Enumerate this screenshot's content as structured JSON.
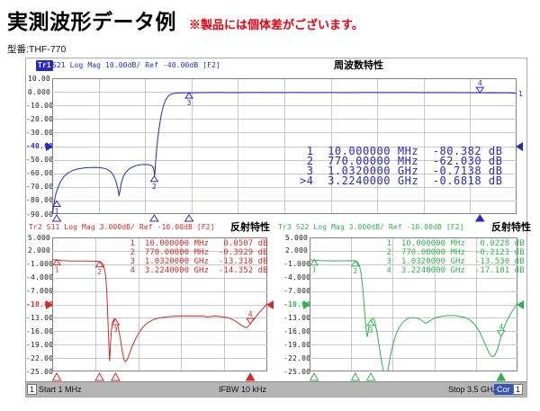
{
  "header": {
    "title": "実測波形データ例",
    "note": "※製品には個体差がございます。",
    "model": "型番:THF-770"
  },
  "status_bar": {
    "channel": "1",
    "start": "Start 1 MHz",
    "ifbw": "IFBW 10 kHz",
    "stop": "Stop 3.5 GHz",
    "cor": "Cor",
    "trailing": "1"
  },
  "colors": {
    "trace1": "#2828c8",
    "trace2": "#d42a2a",
    "trace3": "#2db34d",
    "grid": "#c9c9c9",
    "plot_border": "#808080",
    "note_red": "#e8000d",
    "cor_bg": "#3355bb",
    "statusbar_bg": "#b5b5b5"
  },
  "chart_data": [
    {
      "type": "line",
      "id": "tr1",
      "trace_label": "Tr1",
      "trace_label_highlighted": true,
      "header_text": "S21 Log Mag 10.00dB/ Ref -40.00dB [F2]",
      "panel_title": "周波数特性",
      "color": "#2828c8",
      "x_range_hz": [
        1000000,
        3500000000
      ],
      "x_encoding": "fraction_of_linear_sweep_1MHz_to_3.5GHz",
      "y_unit": "dB",
      "ylim": [
        -90,
        10
      ],
      "ytick_labels": [
        "10.00",
        "0.000",
        "-10.00",
        "-20.00",
        "-30.00",
        "-40.00",
        "-50.00",
        "-60.00",
        "-70.00",
        "-80.00",
        "-90.00"
      ],
      "ref_tick_index": 5,
      "trace_end_label": "1",
      "readout": [
        {
          "n": " 1",
          "freq": "10.000000 MHz",
          "val": "-80.382",
          "unit": "dB"
        },
        {
          "n": " 2",
          "freq": "770.00000 MHz",
          "val": "-62.030",
          "unit": "dB"
        },
        {
          "n": " 3",
          "freq": "1.0320000 GHz",
          "val": "-0.7138",
          "unit": "dB"
        },
        {
          "n": ">4",
          "freq": "3.2240000 GHz",
          "val": "-0.6818",
          "unit": "dB"
        }
      ],
      "markers": [
        {
          "label": "1",
          "x": 0.0026,
          "db": -80.382,
          "active": false
        },
        {
          "label": "2",
          "x": 0.2198,
          "db": -62.03,
          "active": false
        },
        {
          "label": "3",
          "x": 0.2947,
          "db": -0.7138,
          "active": false
        },
        {
          "label": "4",
          "x": 0.9211,
          "db": -0.6818,
          "active": true
        }
      ],
      "points": [
        [
          0.001,
          -92
        ],
        [
          0.002,
          -87
        ],
        [
          0.004,
          -82
        ],
        [
          0.006,
          -78
        ],
        [
          0.009,
          -74
        ],
        [
          0.013,
          -70
        ],
        [
          0.018,
          -66
        ],
        [
          0.025,
          -62.5
        ],
        [
          0.033,
          -60
        ],
        [
          0.042,
          -58.2
        ],
        [
          0.052,
          -57
        ],
        [
          0.065,
          -56.2
        ],
        [
          0.08,
          -55.7
        ],
        [
          0.095,
          -55.6
        ],
        [
          0.108,
          -56
        ],
        [
          0.118,
          -57
        ],
        [
          0.126,
          -58.8
        ],
        [
          0.132,
          -61.5
        ],
        [
          0.137,
          -65.5
        ],
        [
          0.141,
          -71
        ],
        [
          0.144,
          -76.5
        ],
        [
          0.146,
          -73
        ],
        [
          0.149,
          -67
        ],
        [
          0.153,
          -62.5
        ],
        [
          0.158,
          -59.5
        ],
        [
          0.165,
          -57
        ],
        [
          0.173,
          -55.3
        ],
        [
          0.182,
          -54.2
        ],
        [
          0.192,
          -53.6
        ],
        [
          0.202,
          -53.5
        ],
        [
          0.21,
          -53.8
        ],
        [
          0.215,
          -54.6
        ],
        [
          0.218,
          -56.2
        ],
        [
          0.2195,
          -58.5
        ],
        [
          0.2205,
          -62
        ],
        [
          0.2215,
          -58
        ],
        [
          0.223,
          -50
        ],
        [
          0.225,
          -42
        ],
        [
          0.2275,
          -34
        ],
        [
          0.23,
          -27
        ],
        [
          0.2335,
          -19.5
        ],
        [
          0.237,
          -13.5
        ],
        [
          0.241,
          -8.8
        ],
        [
          0.2455,
          -5.2
        ],
        [
          0.25,
          -3.1
        ],
        [
          0.255,
          -1.9
        ],
        [
          0.261,
          -1.2
        ],
        [
          0.268,
          -0.9
        ],
        [
          0.278,
          -0.75
        ],
        [
          0.2947,
          -0.71
        ],
        [
          0.32,
          -0.62
        ],
        [
          0.36,
          -0.55
        ],
        [
          0.4,
          -0.58
        ],
        [
          0.44,
          -0.53
        ],
        [
          0.48,
          -0.58
        ],
        [
          0.52,
          -0.55
        ],
        [
          0.56,
          -0.6
        ],
        [
          0.6,
          -0.55
        ],
        [
          0.64,
          -0.58
        ],
        [
          0.68,
          -0.54
        ],
        [
          0.72,
          -0.6
        ],
        [
          0.76,
          -0.56
        ],
        [
          0.8,
          -0.6
        ],
        [
          0.84,
          -0.58
        ],
        [
          0.87,
          -0.62
        ],
        [
          0.9,
          -0.66
        ],
        [
          0.9211,
          -0.68
        ],
        [
          0.935,
          -0.78
        ],
        [
          0.95,
          -0.68
        ],
        [
          0.965,
          -0.75
        ],
        [
          0.98,
          -0.72
        ],
        [
          0.99,
          -0.85
        ],
        [
          1,
          -1.15
        ]
      ]
    },
    {
      "type": "line",
      "id": "tr2",
      "trace_label": "Tr2",
      "trace_label_highlighted": false,
      "header_text": "S11 Log Mag 3.000dB/ Ref -10.00dB [F2]",
      "panel_title": "反射特性",
      "color": "#d42a2a",
      "x_range_hz": [
        1000000,
        3500000000
      ],
      "x_encoding": "fraction_of_linear_sweep_1MHz_to_3.5GHz",
      "y_unit": "dB",
      "ylim": [
        -25,
        5
      ],
      "ytick_labels": [
        "5.000",
        "2.000",
        "-1.000",
        "-4.000",
        "-7.000",
        "-10.00",
        "-13.00",
        "-16.00",
        "-19.00",
        "-22.00",
        "-25.00"
      ],
      "ref_tick_index": 5,
      "trace_end_label": "",
      "readout": [
        {
          "n": " 1",
          "freq": "10.000000 MHz",
          "val": "0.0507",
          "unit": "dB"
        },
        {
          "n": " 2",
          "freq": "770.00000 MHz",
          "val": "-0.3929",
          "unit": "dB"
        },
        {
          "n": " 3",
          "freq": "1.0320000 GHz",
          "val": "-13.318",
          "unit": "dB"
        },
        {
          "n": " 4",
          "freq": "3.2240000 GHz",
          "val": "-14.352",
          "unit": "dB"
        }
      ],
      "markers": [
        {
          "label": "1",
          "x": 0.0026,
          "db": 0.0507,
          "active": false
        },
        {
          "label": "2",
          "x": 0.2198,
          "db": -0.3929,
          "active": false
        },
        {
          "label": "3",
          "x": 0.2947,
          "db": -13.318,
          "active": false
        },
        {
          "label": "4",
          "x": 0.9211,
          "db": -14.352,
          "active": true
        }
      ],
      "points": [
        [
          0.002,
          0.05
        ],
        [
          0.02,
          -0.1
        ],
        [
          0.05,
          -0.22
        ],
        [
          0.09,
          -0.28
        ],
        [
          0.13,
          -0.3
        ],
        [
          0.17,
          -0.3
        ],
        [
          0.2,
          -0.34
        ],
        [
          0.2198,
          -0.39
        ],
        [
          0.228,
          -0.55
        ],
        [
          0.235,
          -0.9
        ],
        [
          0.242,
          -1.8
        ],
        [
          0.248,
          -3.5
        ],
        [
          0.253,
          -6.5
        ],
        [
          0.257,
          -10.5
        ],
        [
          0.26,
          -14.5
        ],
        [
          0.263,
          -18.5
        ],
        [
          0.2655,
          -21.5
        ],
        [
          0.267,
          -22.6
        ],
        [
          0.269,
          -21
        ],
        [
          0.272,
          -18
        ],
        [
          0.276,
          -15.5
        ],
        [
          0.281,
          -14
        ],
        [
          0.287,
          -13.2
        ],
        [
          0.2947,
          -13.3
        ],
        [
          0.299,
          -13.6
        ],
        [
          0.304,
          -14.4
        ],
        [
          0.311,
          -16
        ],
        [
          0.318,
          -18
        ],
        [
          0.326,
          -20.5
        ],
        [
          0.333,
          -22.2
        ],
        [
          0.34,
          -22.8
        ],
        [
          0.348,
          -22.4
        ],
        [
          0.358,
          -21.2
        ],
        [
          0.37,
          -19.6
        ],
        [
          0.385,
          -18
        ],
        [
          0.4,
          -16.6
        ],
        [
          0.42,
          -15.2
        ],
        [
          0.44,
          -14.2
        ],
        [
          0.47,
          -13.4
        ],
        [
          0.5,
          -13
        ],
        [
          0.53,
          -12.8
        ],
        [
          0.56,
          -12.65
        ],
        [
          0.59,
          -12.6
        ],
        [
          0.62,
          -12.55
        ],
        [
          0.65,
          -12.6
        ],
        [
          0.68,
          -12.55
        ],
        [
          0.7,
          -12.6
        ],
        [
          0.72,
          -12.8
        ],
        [
          0.74,
          -12.7
        ],
        [
          0.76,
          -12.6
        ],
        [
          0.79,
          -12.75
        ],
        [
          0.82,
          -13
        ],
        [
          0.845,
          -13.5
        ],
        [
          0.87,
          -14.3
        ],
        [
          0.89,
          -15
        ],
        [
          0.905,
          -15.2
        ],
        [
          0.9211,
          -14.35
        ],
        [
          0.94,
          -13.2
        ],
        [
          0.96,
          -12
        ],
        [
          0.98,
          -10.9
        ],
        [
          1,
          -9.8
        ]
      ]
    },
    {
      "type": "line",
      "id": "tr3",
      "trace_label": "Tr3",
      "trace_label_highlighted": false,
      "header_text": "S22 Log Mag 3.000dB/ Ref -10.00dB [F2]",
      "panel_title": "反射特性",
      "color": "#2db34d",
      "x_range_hz": [
        1000000,
        3500000000
      ],
      "x_encoding": "fraction_of_linear_sweep_1MHz_to_3.5GHz",
      "y_unit": "dB",
      "ylim": [
        -25,
        5
      ],
      "ytick_labels": [
        "5.000",
        "2.000",
        "-1.000",
        "-4.000",
        "-7.000",
        "-10.00",
        "-13.00",
        "-16.00",
        "-19.00",
        "-22.00",
        "-25.00"
      ],
      "ref_tick_index": 5,
      "trace_end_label": "",
      "readout": [
        {
          "n": " 1",
          "freq": "10.000000 MHz",
          "val": "0.0228",
          "unit": "dB"
        },
        {
          "n": " 2",
          "freq": "770.00000 MHz",
          "val": "-0.2123",
          "unit": "dB"
        },
        {
          "n": " 3",
          "freq": "1.0320000 GHz",
          "val": "-13.530",
          "unit": "dB"
        },
        {
          "n": " 4",
          "freq": "3.2240000 GHz",
          "val": "-17.101",
          "unit": "dB"
        }
      ],
      "markers": [
        {
          "label": "1",
          "x": 0.0026,
          "db": 0.0228,
          "active": false
        },
        {
          "label": "2",
          "x": 0.2198,
          "db": -0.2123,
          "active": false
        },
        {
          "label": "3",
          "x": 0.2947,
          "db": -13.53,
          "active": false
        },
        {
          "label": "4",
          "x": 0.9211,
          "db": -17.101,
          "active": true
        }
      ],
      "points": [
        [
          0.002,
          0.02
        ],
        [
          0.02,
          -0.1
        ],
        [
          0.05,
          -0.2
        ],
        [
          0.09,
          -0.24
        ],
        [
          0.13,
          -0.25
        ],
        [
          0.17,
          -0.24
        ],
        [
          0.2,
          -0.22
        ],
        [
          0.2198,
          -0.21
        ],
        [
          0.228,
          -0.4
        ],
        [
          0.235,
          -0.8
        ],
        [
          0.242,
          -1.7
        ],
        [
          0.249,
          -3.4
        ],
        [
          0.255,
          -6
        ],
        [
          0.26,
          -9
        ],
        [
          0.265,
          -12
        ],
        [
          0.27,
          -14.8
        ],
        [
          0.2745,
          -16.6
        ],
        [
          0.278,
          -17.2
        ],
        [
          0.282,
          -16
        ],
        [
          0.287,
          -14.6
        ],
        [
          0.292,
          -13.8
        ],
        [
          0.2947,
          -13.53
        ],
        [
          0.3,
          -13.2
        ],
        [
          0.306,
          -13.1
        ],
        [
          0.312,
          -13.6
        ],
        [
          0.318,
          -14.8
        ],
        [
          0.325,
          -16.5
        ],
        [
          0.333,
          -18.8
        ],
        [
          0.342,
          -21.5
        ],
        [
          0.351,
          -24
        ],
        [
          0.358,
          -25.8
        ],
        [
          0.363,
          -26.8
        ],
        [
          0.368,
          -26.9
        ],
        [
          0.373,
          -25.8
        ],
        [
          0.38,
          -23.8
        ],
        [
          0.39,
          -21.2
        ],
        [
          0.402,
          -18.8
        ],
        [
          0.415,
          -16.8
        ],
        [
          0.43,
          -15.2
        ],
        [
          0.45,
          -13.9
        ],
        [
          0.47,
          -13.2
        ],
        [
          0.49,
          -12.95
        ],
        [
          0.51,
          -13
        ],
        [
          0.53,
          -13.3
        ],
        [
          0.548,
          -13.9
        ],
        [
          0.558,
          -14.2
        ],
        [
          0.568,
          -14
        ],
        [
          0.58,
          -13.6
        ],
        [
          0.6,
          -13.1
        ],
        [
          0.62,
          -12.8
        ],
        [
          0.645,
          -12.6
        ],
        [
          0.67,
          -12.5
        ],
        [
          0.695,
          -12.5
        ],
        [
          0.72,
          -12.65
        ],
        [
          0.745,
          -12.9
        ],
        [
          0.77,
          -13.4
        ],
        [
          0.795,
          -14.5
        ],
        [
          0.82,
          -16.3
        ],
        [
          0.84,
          -18.4
        ],
        [
          0.858,
          -20.3
        ],
        [
          0.872,
          -21.5
        ],
        [
          0.882,
          -21.7
        ],
        [
          0.893,
          -21.2
        ],
        [
          0.905,
          -19.8
        ],
        [
          0.915,
          -18.2
        ],
        [
          0.9211,
          -17.1
        ],
        [
          0.935,
          -15.2
        ],
        [
          0.95,
          -13.6
        ],
        [
          0.965,
          -12.3
        ],
        [
          0.98,
          -11.1
        ],
        [
          1,
          -9.7
        ]
      ]
    }
  ]
}
